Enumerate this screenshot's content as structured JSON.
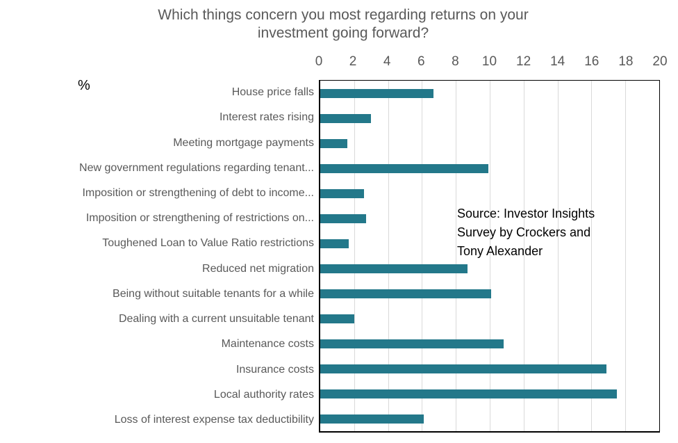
{
  "page": {
    "title_line1": "Which things concern you most regarding returns on your",
    "title_line2": "investment going forward?",
    "unit_label": "%"
  },
  "source": {
    "lines": [
      "Source: Investor Insights",
      "Survey by Crockers and",
      "Tony Alexander"
    ]
  },
  "chart_data": {
    "type": "bar",
    "orientation": "horizontal",
    "title": "Which things concern you most regarding returns on your investment going forward?",
    "xlabel": "%",
    "ylabel": "",
    "xlim": [
      0,
      20
    ],
    "x_ticks": [
      0,
      2,
      4,
      6,
      8,
      10,
      12,
      14,
      16,
      18,
      20
    ],
    "grid": "vertical-only",
    "legend": "none",
    "bar_color": "#23788a",
    "gridline_color": "#d9d9d9",
    "label_color": "#595959",
    "categories": [
      "House price falls",
      "Interest rates rising",
      "Meeting mortgage payments",
      "New government regulations regarding tenant...",
      "Imposition or strengthening of debt to income...",
      "Imposition or strengthening of restrictions on...",
      "Toughened Loan to Value Ratio restrictions",
      "Reduced net migration",
      "Being without suitable tenants for a while",
      "Dealing with a current unsuitable tenant",
      "Maintenance costs",
      "Insurance costs",
      "Local authority rates",
      "Loss of interest expense tax deductibility"
    ],
    "values": [
      6.7,
      3,
      1.6,
      9.9,
      2.6,
      2.7,
      1.7,
      8.7,
      10.1,
      2,
      10.8,
      16.9,
      17.5,
      6.1
    ],
    "source_note": "Source: Investor Insights Survey by Crockers and Tony Alexander"
  }
}
